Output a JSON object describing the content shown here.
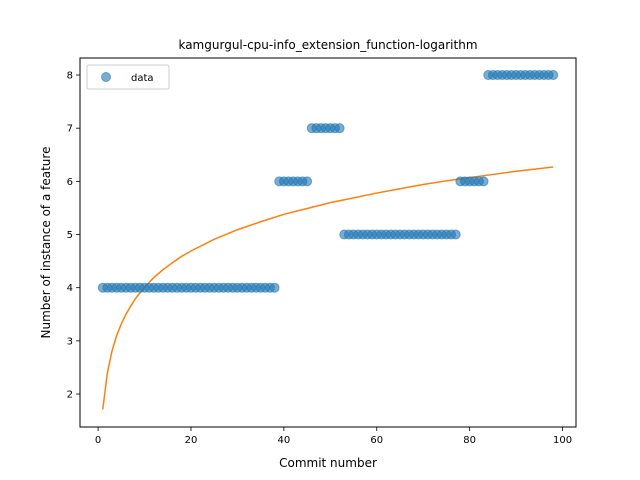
{
  "chart_data": {
    "type": "scatter",
    "title": "kamgurgul-cpu-info_extension_function-logarithm",
    "xlabel": "Commit number",
    "ylabel": "Number of instance of a feature",
    "xlim": [
      -3.9,
      102.9
    ],
    "ylim": [
      1.38,
      8.32
    ],
    "xticks": [
      0,
      20,
      40,
      60,
      80,
      100
    ],
    "yticks": [
      2,
      3,
      4,
      5,
      6,
      7,
      8
    ],
    "grid": false,
    "legend": {
      "placement": "top-left",
      "entries": [
        "data"
      ]
    },
    "colors": {
      "data": "#1f77b4",
      "fit": "#ff7f0e"
    },
    "series": [
      {
        "name": "data",
        "kind": "scatter",
        "x": [
          1,
          2,
          3,
          4,
          5,
          6,
          7,
          8,
          9,
          10,
          11,
          12,
          13,
          14,
          15,
          16,
          17,
          18,
          19,
          20,
          21,
          22,
          23,
          24,
          25,
          26,
          27,
          28,
          29,
          30,
          31,
          32,
          33,
          34,
          35,
          36,
          37,
          38,
          39,
          40,
          41,
          42,
          43,
          44,
          45,
          46,
          47,
          48,
          49,
          50,
          51,
          52,
          53,
          54,
          55,
          56,
          57,
          58,
          59,
          60,
          61,
          62,
          63,
          64,
          65,
          66,
          67,
          68,
          69,
          70,
          71,
          72,
          73,
          74,
          75,
          76,
          77,
          78,
          79,
          80,
          81,
          82,
          83,
          84,
          85,
          86,
          87,
          88,
          89,
          90,
          91,
          92,
          93,
          94,
          95,
          96,
          97,
          98
        ],
        "y": [
          4,
          4,
          4,
          4,
          4,
          4,
          4,
          4,
          4,
          4,
          4,
          4,
          4,
          4,
          4,
          4,
          4,
          4,
          4,
          4,
          4,
          4,
          4,
          4,
          4,
          4,
          4,
          4,
          4,
          4,
          4,
          4,
          4,
          4,
          4,
          4,
          4,
          4,
          6,
          6,
          6,
          6,
          6,
          6,
          6,
          7,
          7,
          7,
          7,
          7,
          7,
          7,
          5,
          5,
          5,
          5,
          5,
          5,
          5,
          5,
          5,
          5,
          5,
          5,
          5,
          5,
          5,
          5,
          5,
          5,
          5,
          5,
          5,
          5,
          5,
          5,
          5,
          6,
          6,
          6,
          6,
          6,
          6,
          8,
          8,
          8,
          8,
          8,
          8,
          8,
          8,
          8,
          8,
          8,
          8,
          8,
          8,
          8
        ]
      },
      {
        "kind": "line",
        "x": [
          1,
          2,
          3,
          4,
          5,
          6,
          7,
          8,
          9,
          10,
          12,
          14,
          16,
          18,
          20,
          25,
          30,
          35,
          40,
          45,
          50,
          55,
          60,
          65,
          70,
          75,
          80,
          85,
          90,
          95,
          98
        ],
        "y": [
          1.71,
          2.4,
          2.81,
          3.1,
          3.32,
          3.5,
          3.65,
          3.79,
          3.9,
          4.01,
          4.19,
          4.34,
          4.47,
          4.59,
          4.69,
          4.91,
          5.09,
          5.24,
          5.38,
          5.49,
          5.6,
          5.69,
          5.78,
          5.86,
          5.94,
          6.01,
          6.07,
          6.13,
          6.19,
          6.24,
          6.27
        ]
      }
    ]
  }
}
